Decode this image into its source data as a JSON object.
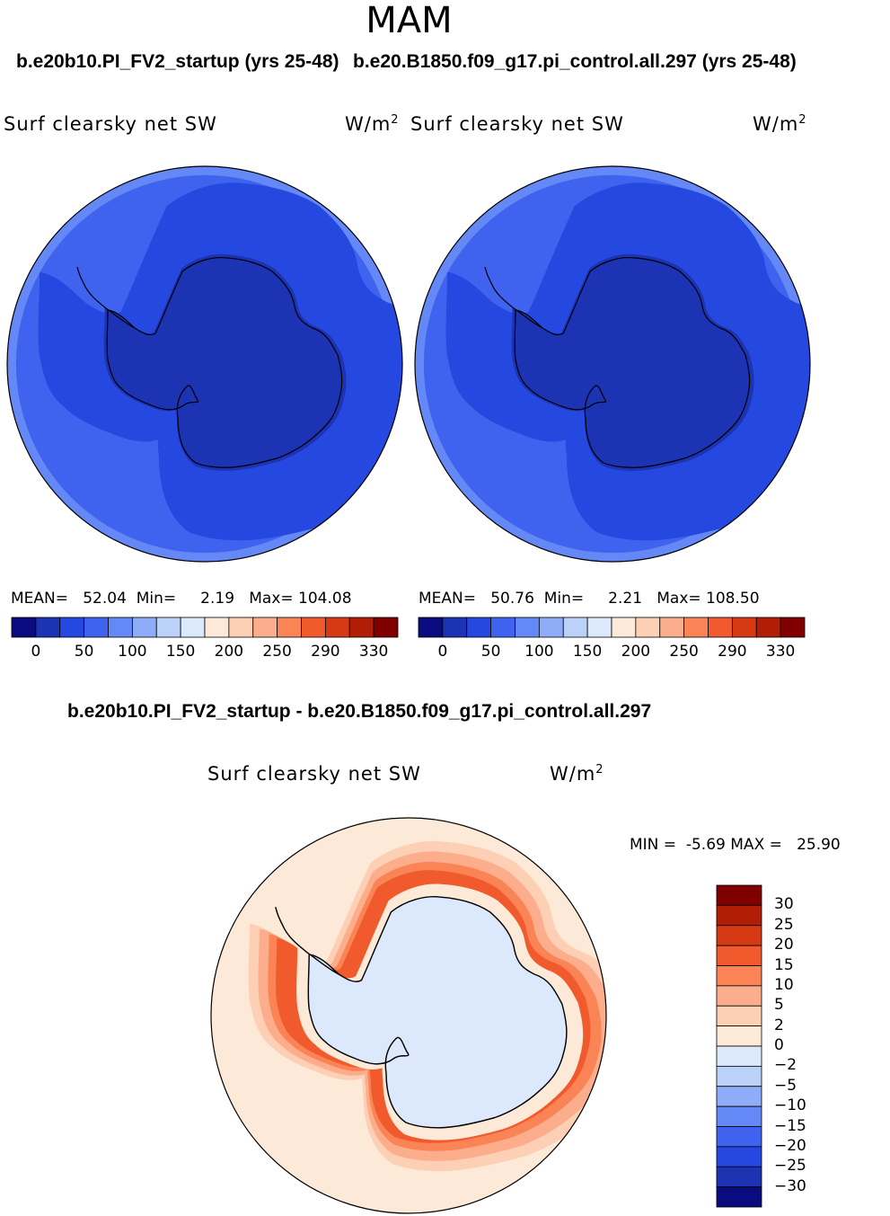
{
  "figure": {
    "season": "MAM",
    "units": "W/m",
    "units_sup": "2"
  },
  "chart_data": [
    {
      "type": "heatmap",
      "projection": "south-polar-stereographic",
      "case_title": "b.e20b10.PI_FV2_startup (yrs 25-48)",
      "variable": "Surf clearsky net SW",
      "units": "W/m2",
      "mean_label": "MEAN=",
      "mean": "52.04",
      "min_label": "Min=",
      "min": "2.19",
      "max_label": "Max=",
      "max": "104.08",
      "levels": [
        0,
        25,
        50,
        75,
        100,
        125,
        150,
        175,
        200,
        225,
        250,
        270,
        290,
        310,
        330
      ],
      "tick_labels": [
        "0",
        "50",
        "100",
        "150",
        "200",
        "250",
        "290",
        "330"
      ],
      "colors": [
        "#0b0b80",
        "#1c33b4",
        "#2548e0",
        "#3f63ee",
        "#6488f5",
        "#8eacf7",
        "#bcd1f7",
        "#dce8fb",
        "#fde9d8",
        "#fdd0b6",
        "#fcae8c",
        "#fa8456",
        "#f05a2d",
        "#d63a14",
        "#b21d06",
        "#800000"
      ],
      "rings_outer_to_inner_values": [
        90,
        70,
        50,
        30,
        10
      ]
    },
    {
      "type": "heatmap",
      "projection": "south-polar-stereographic",
      "case_title": "b.e20.B1850.f09_g17.pi_control.all.297 (yrs 25-48)",
      "variable": "Surf clearsky net SW",
      "units": "W/m2",
      "mean_label": "MEAN=",
      "mean": "50.76",
      "min_label": "Min=",
      "min": "2.21",
      "max_label": "Max=",
      "max": "108.50",
      "levels": [
        0,
        25,
        50,
        75,
        100,
        125,
        150,
        175,
        200,
        225,
        250,
        270,
        290,
        310,
        330
      ],
      "tick_labels": [
        "0",
        "50",
        "100",
        "150",
        "200",
        "250",
        "290",
        "330"
      ],
      "colors": [
        "#0b0b80",
        "#1c33b4",
        "#2548e0",
        "#3f63ee",
        "#6488f5",
        "#8eacf7",
        "#bcd1f7",
        "#dce8fb",
        "#fde9d8",
        "#fdd0b6",
        "#fcae8c",
        "#fa8456",
        "#f05a2d",
        "#d63a14",
        "#b21d06",
        "#800000"
      ],
      "rings_outer_to_inner_values": [
        90,
        70,
        50,
        30,
        10
      ]
    },
    {
      "type": "heatmap",
      "projection": "south-polar-stereographic",
      "diff_title": "b.e20b10.PI_FV2_startup - b.e20.B1850.f09_g17.pi_control.all.297",
      "variable": "Surf clearsky net SW",
      "units": "W/m2",
      "min_label": "MIN =",
      "min": "-5.69",
      "max_label": "MAX =",
      "max": "25.90",
      "levels": [
        30,
        25,
        20,
        15,
        10,
        5,
        2,
        0,
        -2,
        -5,
        -10,
        -15,
        -20,
        -25,
        -30
      ],
      "tick_labels": [
        "30",
        "25",
        "20",
        "15",
        "10",
        "5",
        "2",
        "0",
        "−2",
        "−5",
        "−10",
        "−15",
        "−20",
        "−25",
        "−30"
      ],
      "colors": [
        "#800000",
        "#b21d06",
        "#d63a14",
        "#f05a2d",
        "#fa8456",
        "#fcae8c",
        "#fdd0b6",
        "#fde9d8",
        "#dce8fb",
        "#bcd1f7",
        "#8eacf7",
        "#6488f5",
        "#3f63ee",
        "#2548e0",
        "#1c33b4",
        "#0b0b80"
      ],
      "background_value": 0,
      "positive_band_values": [
        2,
        5,
        10,
        15,
        20
      ]
    }
  ]
}
